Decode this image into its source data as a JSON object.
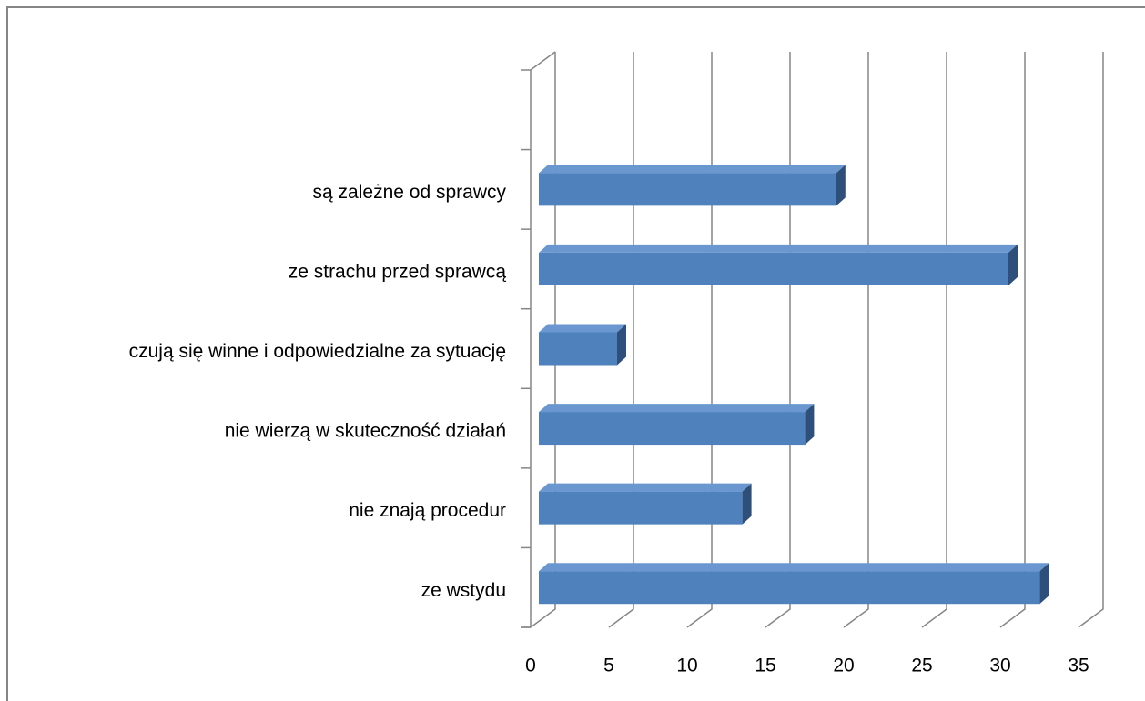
{
  "chart_data": {
    "type": "bar3d",
    "orientation": "horizontal",
    "categories": [
      null,
      "są zależne od sprawcy",
      "ze strachu przed sprawcą",
      "czują się winne i odpowiedzialne za sytuację",
      "nie wierzą w skuteczność działań",
      "nie znają procedur",
      "ze wstydu"
    ],
    "values": [
      null,
      19,
      30,
      5,
      17,
      13,
      32
    ],
    "color": "#4f81bd",
    "xlim": [
      0,
      35
    ],
    "xticks": [
      0,
      5,
      10,
      15,
      20,
      25,
      30,
      35
    ],
    "grid": true
  }
}
